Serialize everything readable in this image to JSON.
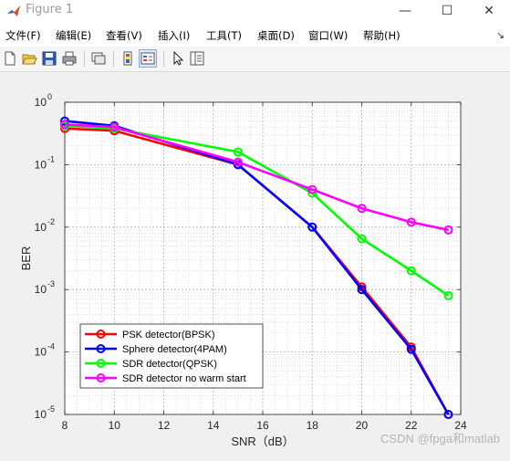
{
  "window": {
    "title": "Figure 1",
    "minimize_glyph": "—",
    "maximize_glyph": "☐",
    "close_glyph": "✕"
  },
  "menu": [
    {
      "label": "文件(F)"
    },
    {
      "label": "编辑(E)"
    },
    {
      "label": "查看(V)"
    },
    {
      "label": "插入(I)"
    },
    {
      "label": "工具(T)"
    },
    {
      "label": "桌面(D)"
    },
    {
      "label": "窗口(W)"
    },
    {
      "label": "帮助(H)"
    }
  ],
  "menu_corner_glyph": "↘",
  "toolbar_icons": [
    "new-figure-icon",
    "open-file-icon",
    "save-icon",
    "print-icon",
    "link-plot-icon",
    "colorbar-icon",
    "legend-icon",
    "edit-plot-arrow-icon",
    "property-inspector-icon"
  ],
  "watermark": "CSDN @fpga和matlab",
  "chart_data": {
    "type": "line",
    "title": "",
    "xlabel": "SNR（dB）",
    "ylabel": "BER",
    "xlim": [
      8,
      24
    ],
    "ylim": [
      1e-05,
      1
    ],
    "yscale": "log",
    "xticks": [
      "8",
      "10",
      "12",
      "14",
      "16",
      "18",
      "20",
      "22",
      "24"
    ],
    "yticks": [
      {
        "value": 1,
        "base": "10",
        "exp": "0"
      },
      {
        "value": 0.1,
        "base": "10",
        "exp": "-1"
      },
      {
        "value": 0.01,
        "base": "10",
        "exp": "-2"
      },
      {
        "value": 0.001,
        "base": "10",
        "exp": "-3"
      },
      {
        "value": 0.0001,
        "base": "10",
        "exp": "-4"
      },
      {
        "value": 1e-05,
        "base": "10",
        "exp": "-5"
      }
    ],
    "grid": true,
    "legend_position": "bottom-left",
    "series": [
      {
        "name": "PSK detector(BPSK)",
        "color": "#ff0000",
        "x": [
          8,
          10,
          15,
          18,
          20,
          22,
          23.5
        ],
        "y": [
          0.38,
          0.35,
          0.1,
          0.01,
          0.0011,
          0.00012,
          1e-05
        ]
      },
      {
        "name": "Sphere detector(4PAM)",
        "color": "#0000ff",
        "x": [
          8,
          10,
          15,
          18,
          20,
          22,
          23.5
        ],
        "y": [
          0.5,
          0.42,
          0.1,
          0.01,
          0.001,
          0.00011,
          1e-05
        ]
      },
      {
        "name": "SDR detector(QPSK)",
        "color": "#00ff00",
        "x": [
          8,
          10,
          15,
          18,
          20,
          22,
          23.5
        ],
        "y": [
          0.42,
          0.38,
          0.16,
          0.035,
          0.0065,
          0.002,
          0.0008
        ]
      },
      {
        "name": "SDR detector no warm start",
        "color": "#ff00ff",
        "x": [
          8,
          10,
          15,
          18,
          20,
          22,
          23.5
        ],
        "y": [
          0.44,
          0.4,
          0.11,
          0.04,
          0.02,
          0.012,
          0.009
        ]
      }
    ]
  }
}
